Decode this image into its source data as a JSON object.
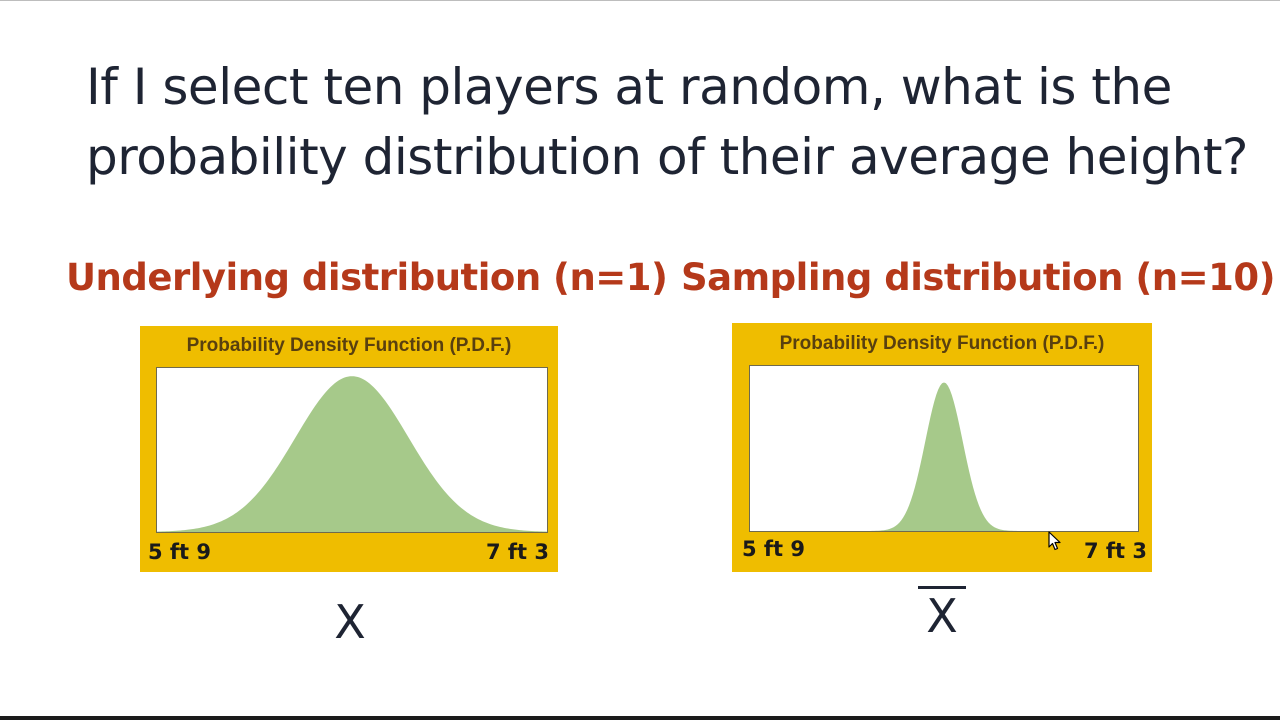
{
  "question": {
    "line1": "If I select ten players at random, what is the",
    "line2": "probability distribution of their average height?"
  },
  "left_heading": "Underlying distribution (n=1)",
  "right_heading": "Sampling distribution (n=10)",
  "colors": {
    "heading": "#b5391a",
    "panel": "#efbd00",
    "curve_fill": "#a6c98a",
    "text": "#1e2433"
  },
  "chart_data": [
    {
      "type": "area",
      "title": "Probability Density Function (P.D.F.)",
      "xlabel": "X",
      "tick_labels": [
        "5 ft 9",
        "7 ft 3"
      ],
      "xlim": [
        0,
        1
      ],
      "distribution": {
        "shape": "normal",
        "mean": 0.5,
        "sd": 0.145
      },
      "peak_fraction": 0.95
    },
    {
      "type": "area",
      "title": "Probability Density Function (P.D.F.)",
      "xlabel": "X",
      "xlabel_overline": true,
      "tick_labels": [
        "5 ft 9",
        "7 ft 3"
      ],
      "xlim": [
        0,
        1
      ],
      "distribution": {
        "shape": "normal",
        "mean": 0.5,
        "sd": 0.048
      },
      "peak_fraction": 0.9
    }
  ]
}
